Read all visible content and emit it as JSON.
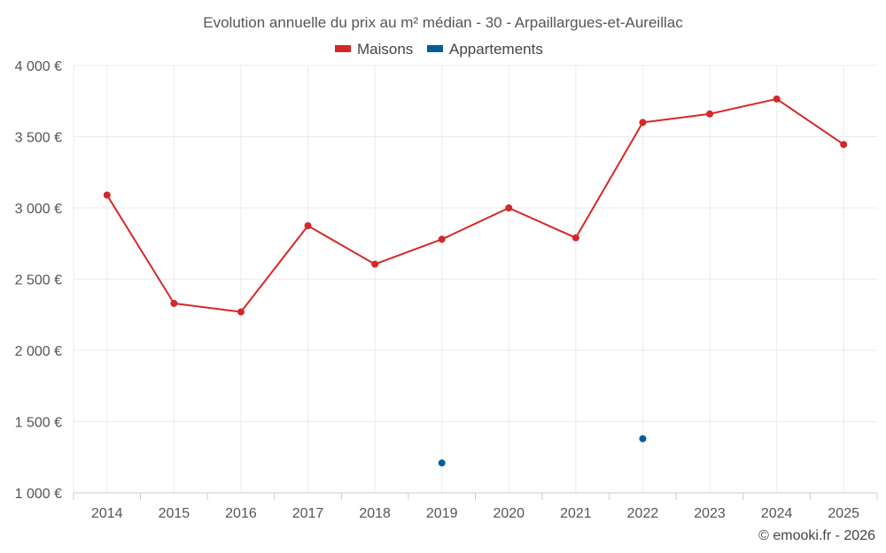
{
  "chart_data": {
    "type": "line",
    "title": "Evolution annuelle du prix au m² médian - 30 - Arpaillargues-et-Aureillac",
    "categories": [
      "2014",
      "2015",
      "2016",
      "2017",
      "2018",
      "2019",
      "2020",
      "2021",
      "2022",
      "2023",
      "2024",
      "2025"
    ],
    "ylim": [
      1000,
      4000
    ],
    "yticks": [
      1000,
      1500,
      2000,
      2500,
      3000,
      3500,
      4000
    ],
    "ytick_labels": [
      "1 000 €",
      "1 500 €",
      "2 000 €",
      "2 500 €",
      "3 000 €",
      "3 500 €",
      "4 000 €"
    ],
    "legend_position": "top-center",
    "grid": true,
    "series": [
      {
        "name": "Maisons",
        "color": "#d62728",
        "values": [
          3090,
          2330,
          2270,
          2875,
          2605,
          2780,
          3000,
          2790,
          3600,
          3660,
          3765,
          3445
        ]
      },
      {
        "name": "Appartements",
        "color": "#005f99",
        "values": [
          null,
          null,
          null,
          null,
          null,
          1210,
          null,
          null,
          1380,
          null,
          null,
          null
        ]
      }
    ],
    "credit": "© emooki.fr - 2026"
  }
}
